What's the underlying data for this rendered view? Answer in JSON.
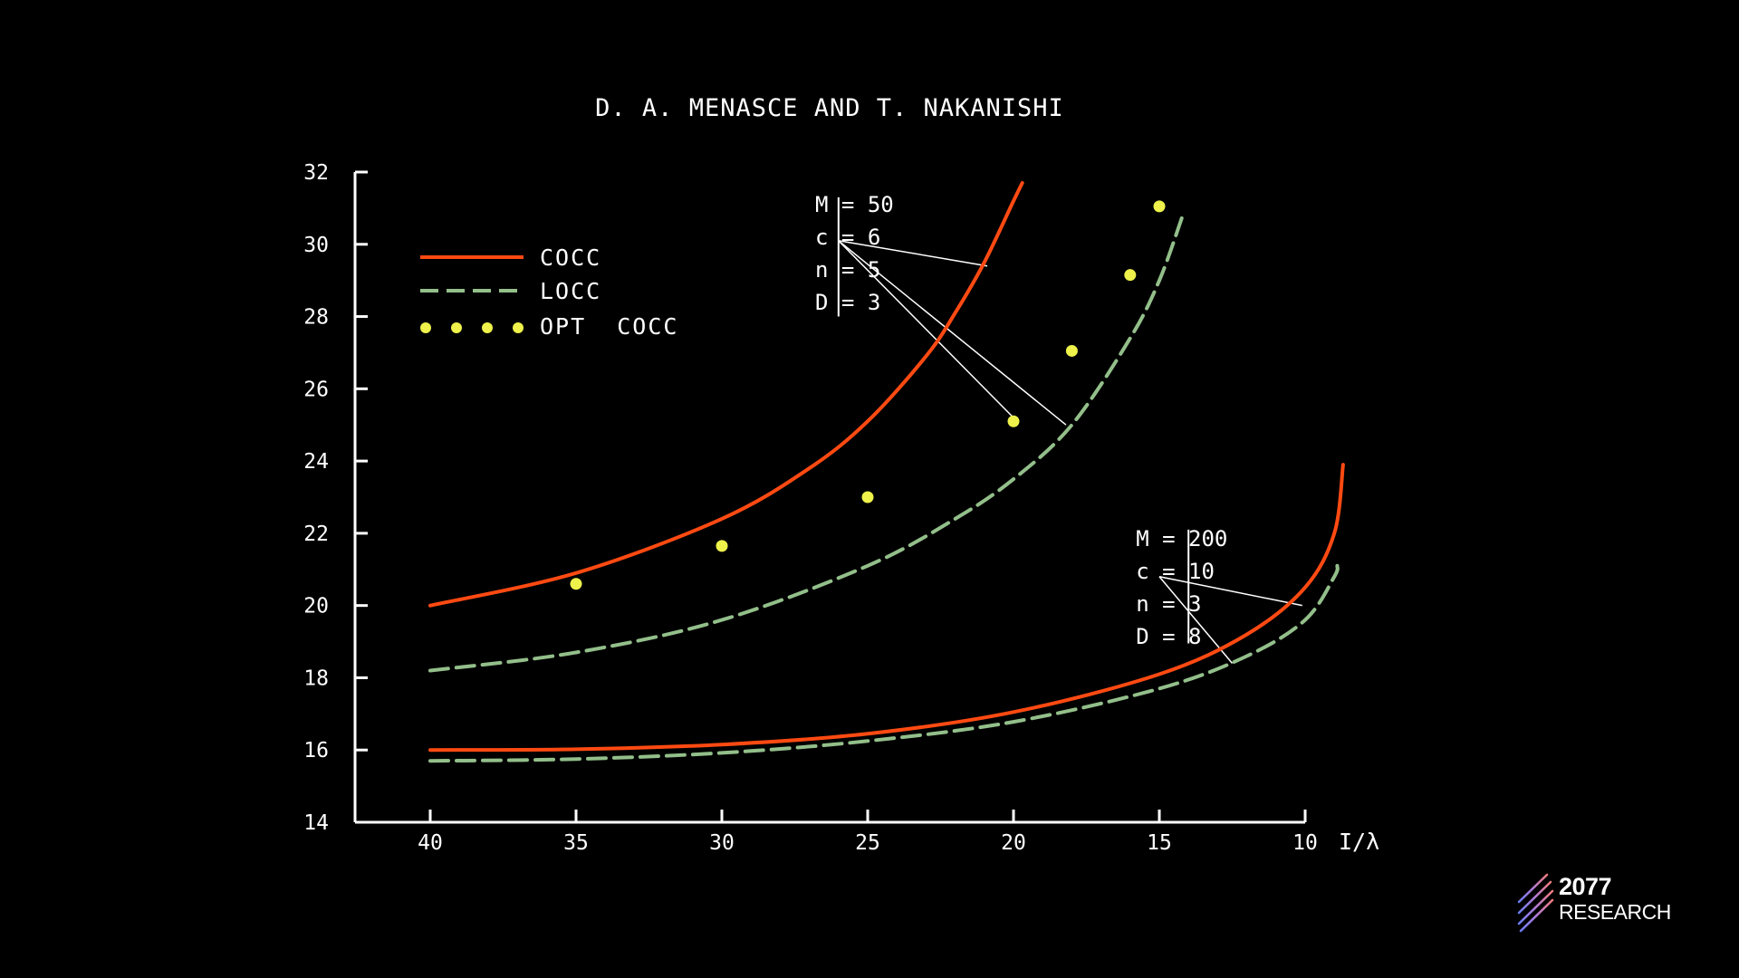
{
  "chart_data": {
    "type": "line",
    "title": "D. A. MENASCE AND T. NAKANISHI",
    "xlabel": "I/λ",
    "ylabel": "",
    "x_reversed": true,
    "xlim": [
      42.5,
      8
    ],
    "ylim": [
      14,
      32
    ],
    "x_ticks": [
      40,
      35,
      30,
      25,
      20,
      15,
      10
    ],
    "y_ticks": [
      14,
      16,
      18,
      20,
      22,
      24,
      26,
      28,
      30,
      32
    ],
    "grid": false,
    "legend_position": "top-left",
    "legend": [
      {
        "label": "COCC",
        "style": "solid",
        "color": "#ff4a12"
      },
      {
        "label": "LOCC",
        "style": "dashed",
        "color": "#93bf8a"
      },
      {
        "label": "OPT  COCC",
        "style": "dotted",
        "color": "#eef24a"
      }
    ],
    "series": [
      {
        "legend": "COCC",
        "group": "M50",
        "style": "solid",
        "color": "#ff4a12",
        "x": [
          40,
          35,
          30,
          27,
          25,
          23,
          22,
          21,
          20,
          19.7
        ],
        "y": [
          20.0,
          20.9,
          22.4,
          23.8,
          25.1,
          26.9,
          28.1,
          29.5,
          31.2,
          31.7
        ]
      },
      {
        "legend": "LOCC",
        "group": "M50",
        "style": "dashed",
        "color": "#93bf8a",
        "x": [
          40,
          35,
          30,
          25,
          22,
          20,
          18,
          16,
          15,
          14.2
        ],
        "y": [
          18.2,
          18.7,
          19.6,
          21.1,
          22.4,
          23.5,
          25.0,
          27.4,
          29.0,
          30.8
        ]
      },
      {
        "legend": "OPT  COCC",
        "group": "M50",
        "style": "dotted",
        "color": "#eef24a",
        "x": [
          35,
          30,
          25,
          20,
          18,
          16,
          15
        ],
        "y": [
          20.6,
          21.65,
          23.0,
          25.1,
          27.05,
          29.15,
          31.05
        ]
      },
      {
        "legend": "COCC",
        "group": "M200",
        "style": "solid",
        "color": "#ff4a12",
        "x": [
          40,
          35,
          30,
          25,
          20,
          15,
          12,
          10,
          9,
          8.7
        ],
        "y": [
          16.0,
          16.02,
          16.15,
          16.45,
          17.05,
          18.1,
          19.2,
          20.5,
          22.0,
          23.9
        ]
      },
      {
        "legend": "LOCC",
        "group": "M200",
        "style": "dashed",
        "color": "#93bf8a",
        "x": [
          40,
          35,
          30,
          25,
          20,
          15,
          12,
          10,
          9,
          8.9
        ],
        "y": [
          15.7,
          15.75,
          15.92,
          16.25,
          16.78,
          17.7,
          18.6,
          19.6,
          20.8,
          21.1
        ]
      }
    ],
    "annotations": [
      {
        "lines": [
          "M = 50",
          "c = 6",
          "n = 5",
          "D = 3"
        ],
        "text_pos": [
          26.8,
          31.1
        ],
        "bar": {
          "x": 26.0,
          "y_top": 31.3,
          "y_bottom": 28.0
        },
        "leader_origin": [
          26.0,
          30.1
        ],
        "leaders": [
          [
            20.9,
            29.4
          ],
          [
            18.2,
            25.0
          ],
          [
            20.0,
            25.2
          ]
        ]
      },
      {
        "lines": [
          "M = 200",
          "c = 10",
          "n = 3",
          "D = 8"
        ],
        "text_pos": [
          15.8,
          21.85
        ],
        "bar": {
          "x": 14.0,
          "y_top": 22.1,
          "y_bottom": 18.95
        },
        "leader_origin": [
          15.0,
          20.8
        ],
        "leaders": [
          [
            10.1,
            20.0
          ],
          [
            12.5,
            18.4
          ]
        ]
      }
    ]
  },
  "logo": {
    "number": "2077",
    "name": "RESEARCH"
  }
}
